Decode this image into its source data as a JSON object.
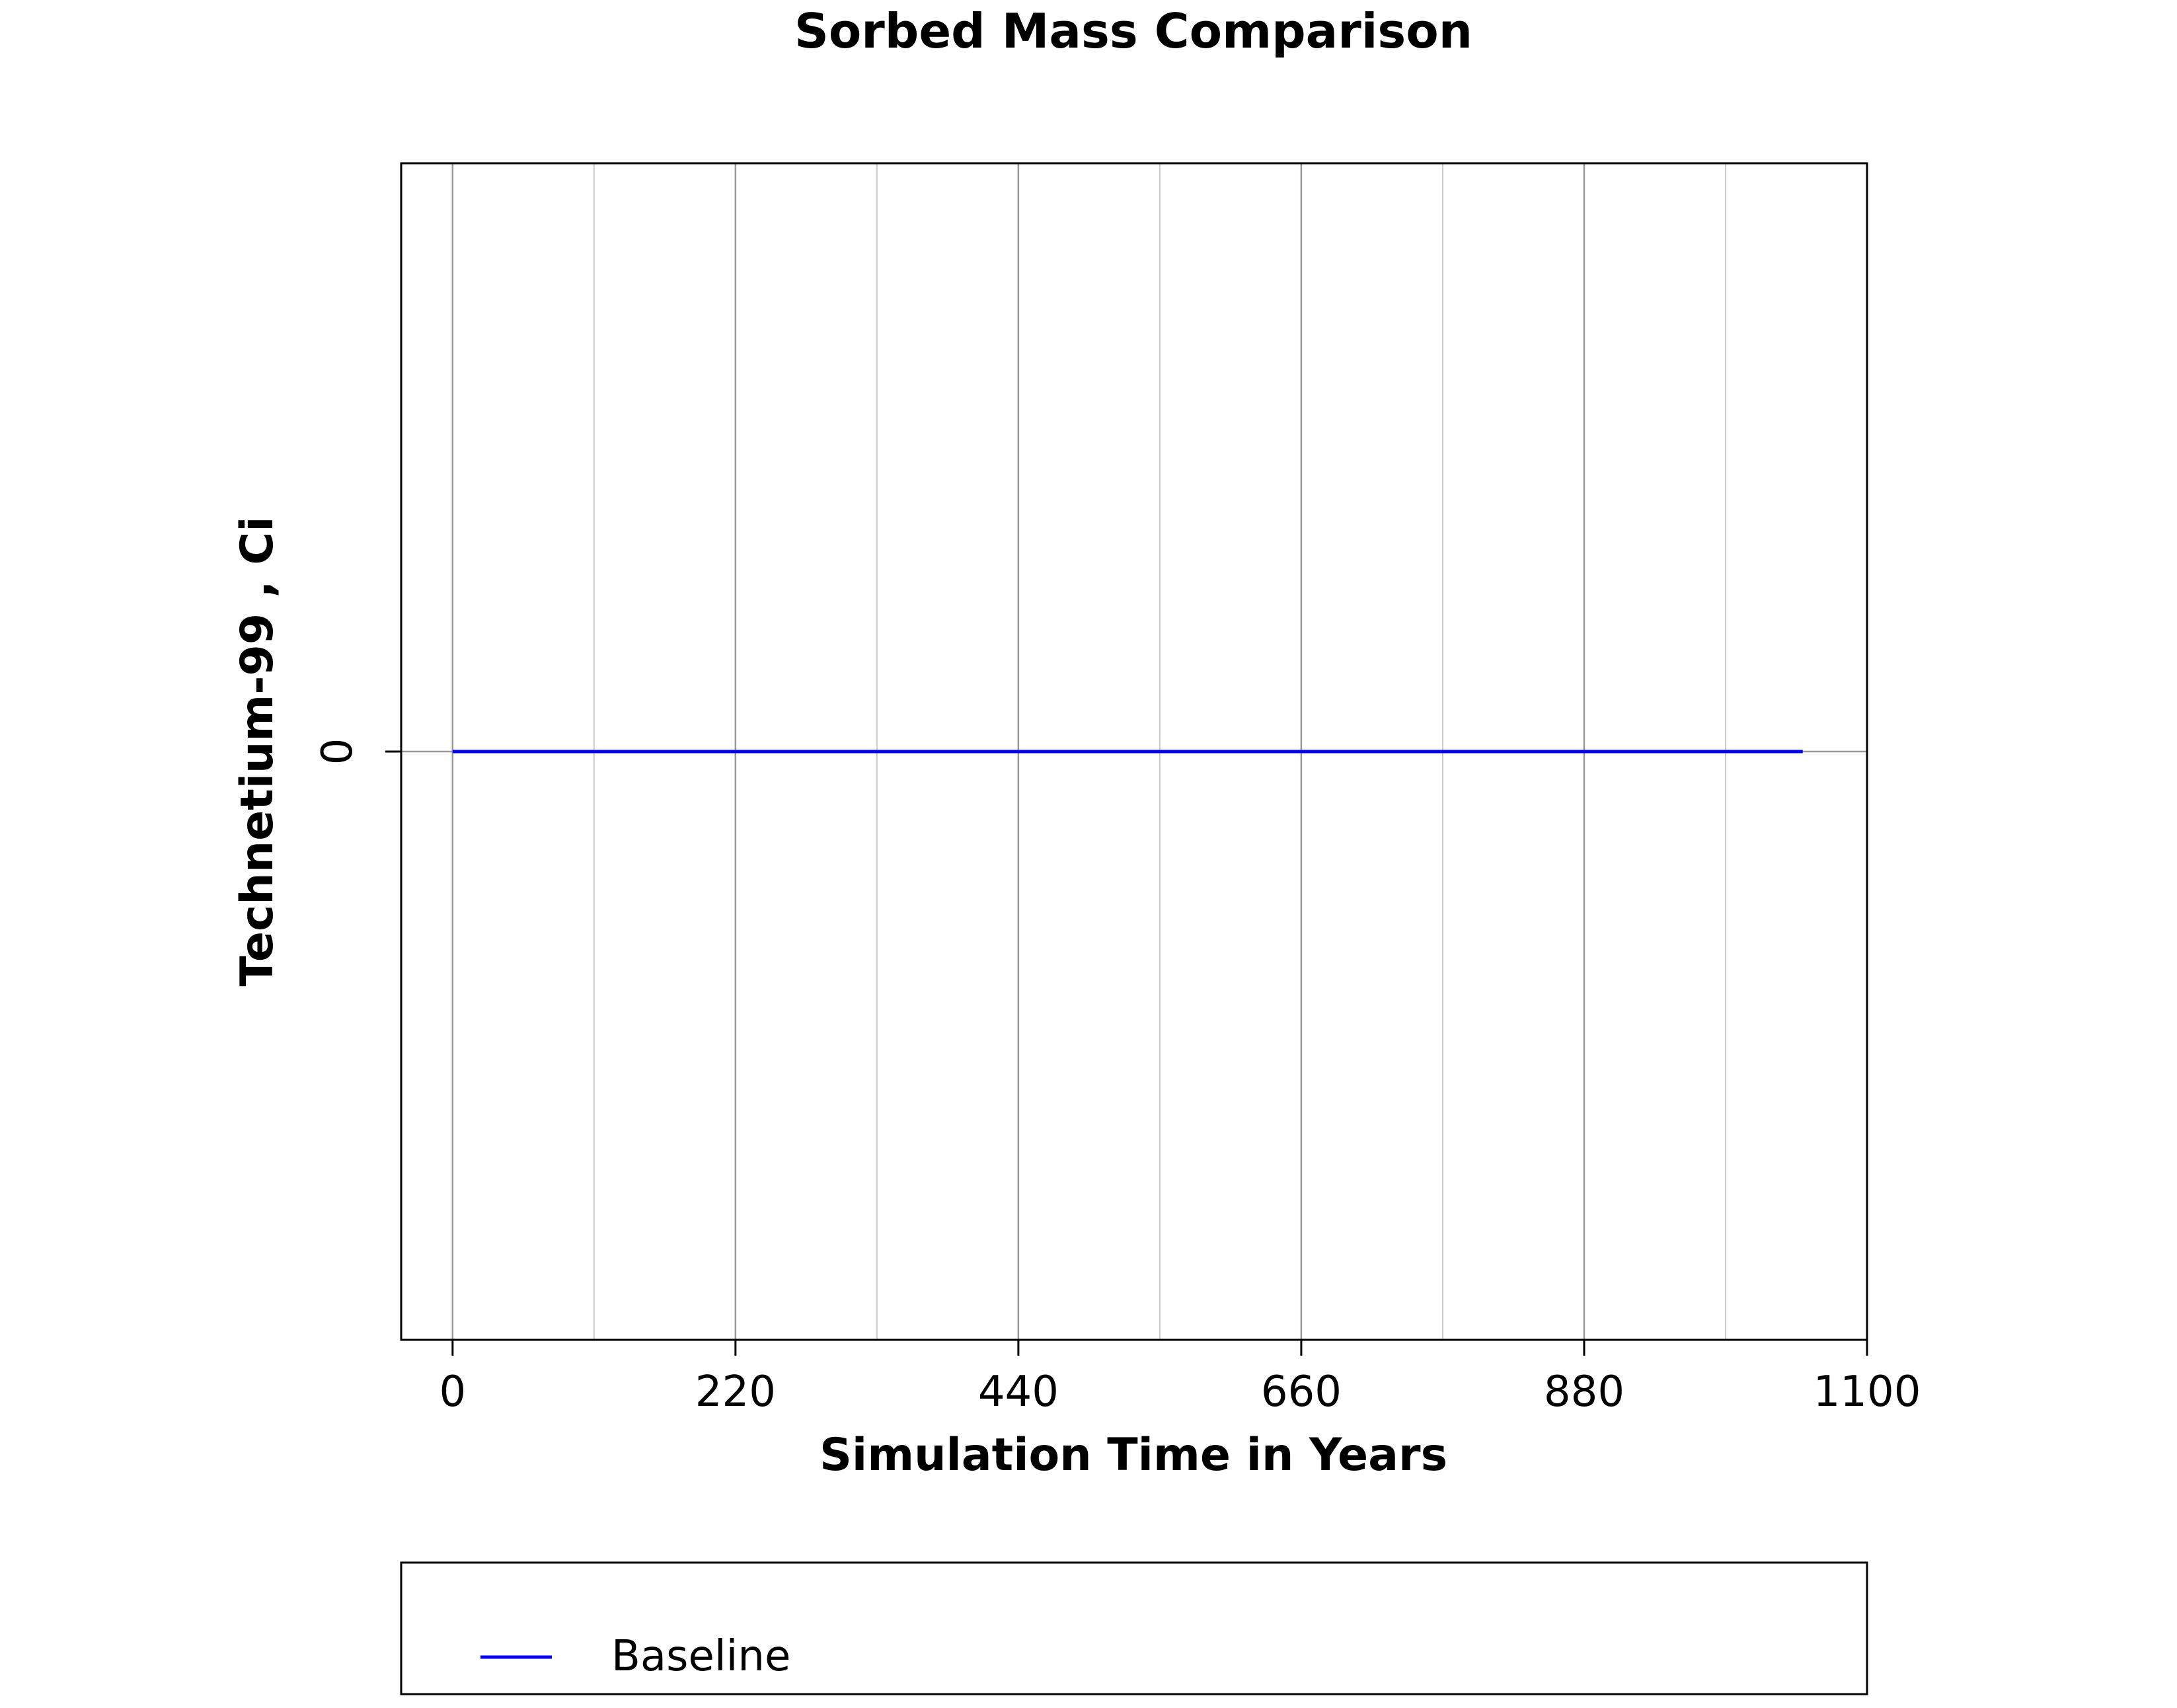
{
  "chart_data": {
    "type": "line",
    "title": "Sorbed Mass Comparison",
    "xlabel": "Simulation Time in Years",
    "ylabel": "Technetium-99 , Ci",
    "xlim": [
      -80,
      2200
    ],
    "ylim": [
      -1,
      1
    ],
    "x_ticks": [
      0,
      440,
      880,
      1320,
      1760,
      2200
    ],
    "x_tick_labels": [
      "0",
      "220",
      "440",
      "660",
      "880",
      "1100"
    ],
    "x_minor_grid": [
      220,
      660,
      1100,
      1540,
      1980
    ],
    "y_ticks": [
      0
    ],
    "y_tick_labels": [
      "0"
    ],
    "grid": true,
    "legend_position": "bottom",
    "series": [
      {
        "name": "Baseline",
        "color": "#0000ee",
        "x": [
          0,
          2100
        ],
        "y": [
          0,
          0
        ]
      }
    ],
    "colors": {
      "major_grid": "#999999",
      "minor_grid": "#cccccc",
      "frame": "#000000"
    }
  }
}
